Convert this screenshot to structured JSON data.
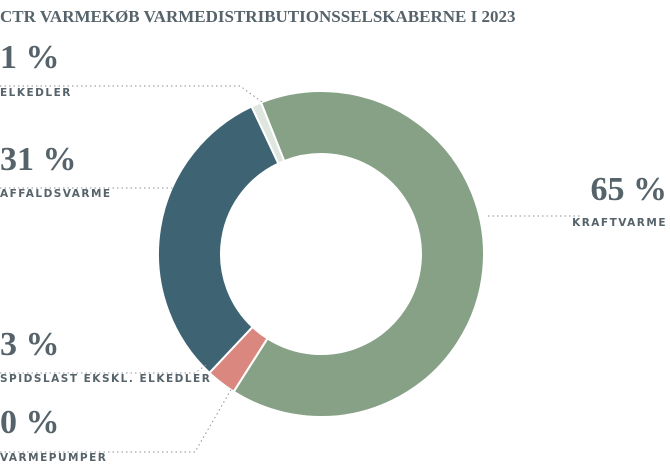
{
  "chart_data": {
    "type": "donut",
    "title": "CTR VARMEKØB VARMEDISTRIBUTIONSSELSKABERNE I 2023",
    "categories": [
      "KRAFTVARME",
      "VARMEPUMPER",
      "SPIDSLAST EKSKL. ELKEDLER",
      "AFFALDSVARME",
      "ELKEDLER"
    ],
    "values": [
      65,
      0,
      3,
      31,
      1
    ],
    "value_labels": [
      "65 %",
      "0 %",
      "3 %",
      "31 %",
      "1 %"
    ],
    "colors": [
      "#86a186",
      "#c7d4c7",
      "#d9877f",
      "#3e6473",
      "#dfe6df"
    ]
  }
}
